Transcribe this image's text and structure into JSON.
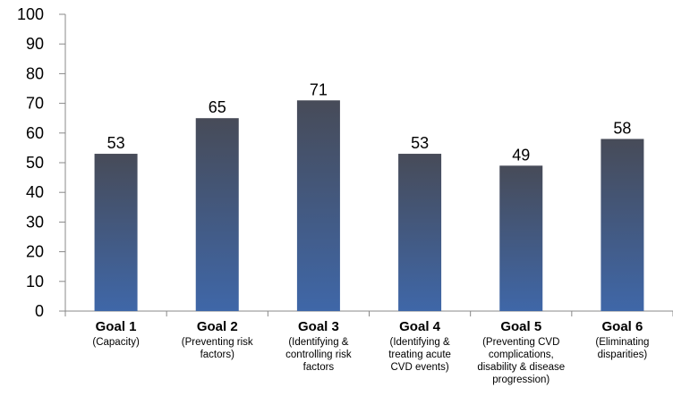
{
  "colors": {
    "bar_top": "#474b58",
    "bar_bottom": "#3f67a8",
    "axis": "#888888"
  },
  "chart_data": {
    "type": "bar",
    "categories": [
      {
        "title": "Goal 1",
        "lines": [
          "(Capacity)"
        ]
      },
      {
        "title": "Goal 2",
        "lines": [
          "(Preventing risk",
          "factors)"
        ]
      },
      {
        "title": "Goal 3",
        "lines": [
          "(Identifying &",
          "controlling risk",
          "factors"
        ]
      },
      {
        "title": "Goal 4",
        "lines": [
          "(Identifying &",
          "treating acute",
          "CVD events)"
        ]
      },
      {
        "title": "Goal 5",
        "lines": [
          "(Preventing CVD",
          "complications,",
          "disability & disease",
          "progression)"
        ]
      },
      {
        "title": "Goal 6",
        "lines": [
          "(Eliminating",
          "disparities)"
        ]
      }
    ],
    "values": [
      53,
      65,
      71,
      53,
      49,
      58
    ],
    "data_labels": [
      "53",
      "65",
      "71",
      "53",
      "49",
      "58"
    ],
    "ylim": [
      0,
      100
    ],
    "yticks": [
      "0",
      "10",
      "20",
      "30",
      "40",
      "50",
      "60",
      "70",
      "80",
      "90",
      "100"
    ],
    "grid": false,
    "legend": "none"
  }
}
